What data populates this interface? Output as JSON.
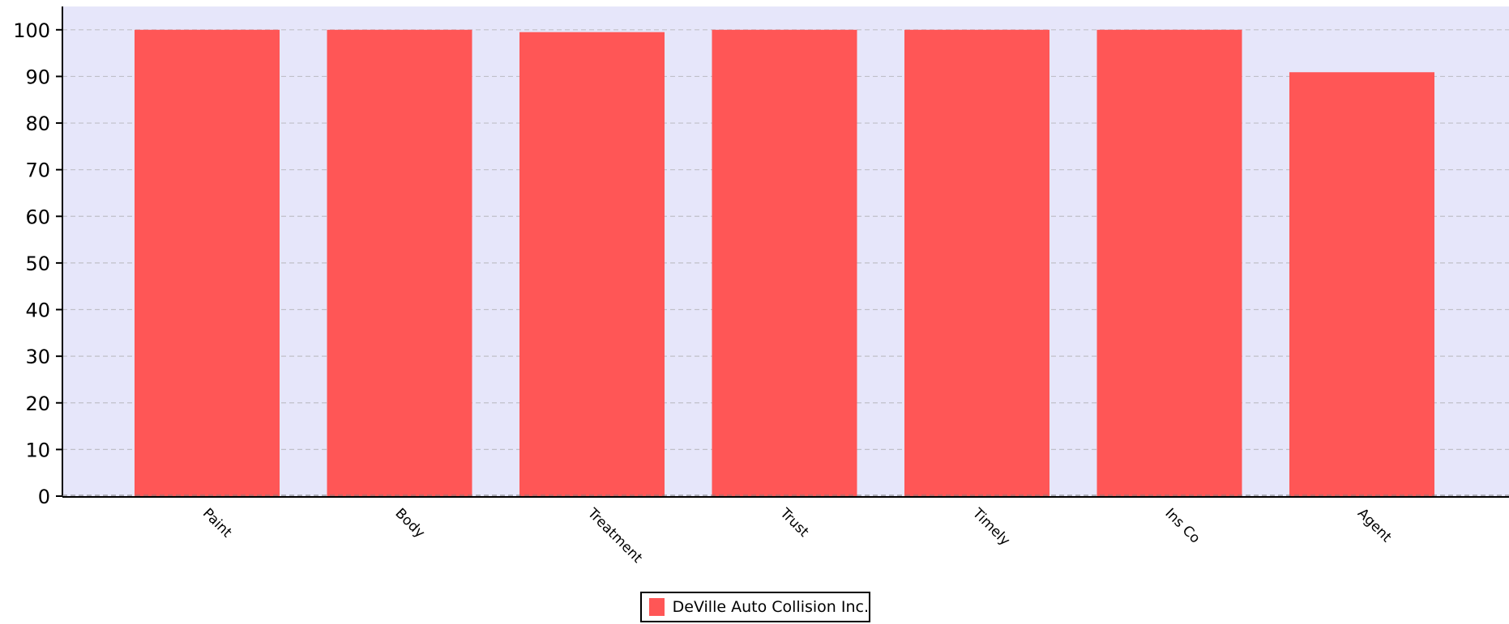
{
  "chart_data": {
    "type": "bar",
    "categories": [
      "Paint",
      "Body",
      "Treatment",
      "Trust",
      "Timely",
      "Ins Co",
      "Agent"
    ],
    "series": [
      {
        "name": "DeVille Auto Collision Inc.",
        "values": [
          100,
          100,
          99.5,
          100,
          100,
          100,
          90.9
        ]
      }
    ],
    "yticks": [
      "0",
      "10",
      "20",
      "30",
      "40",
      "50",
      "60",
      "70",
      "80",
      "90",
      "100"
    ],
    "ylim": [
      0,
      105
    ],
    "grid": true,
    "legend_position": "bottom-center",
    "colors": {
      "bar": "#ff5656",
      "plot_background": "#e6e6fa",
      "grid": "#c0c0c8",
      "axis": "#000000"
    }
  },
  "legend": {
    "label": "DeVille Auto Collision Inc."
  }
}
